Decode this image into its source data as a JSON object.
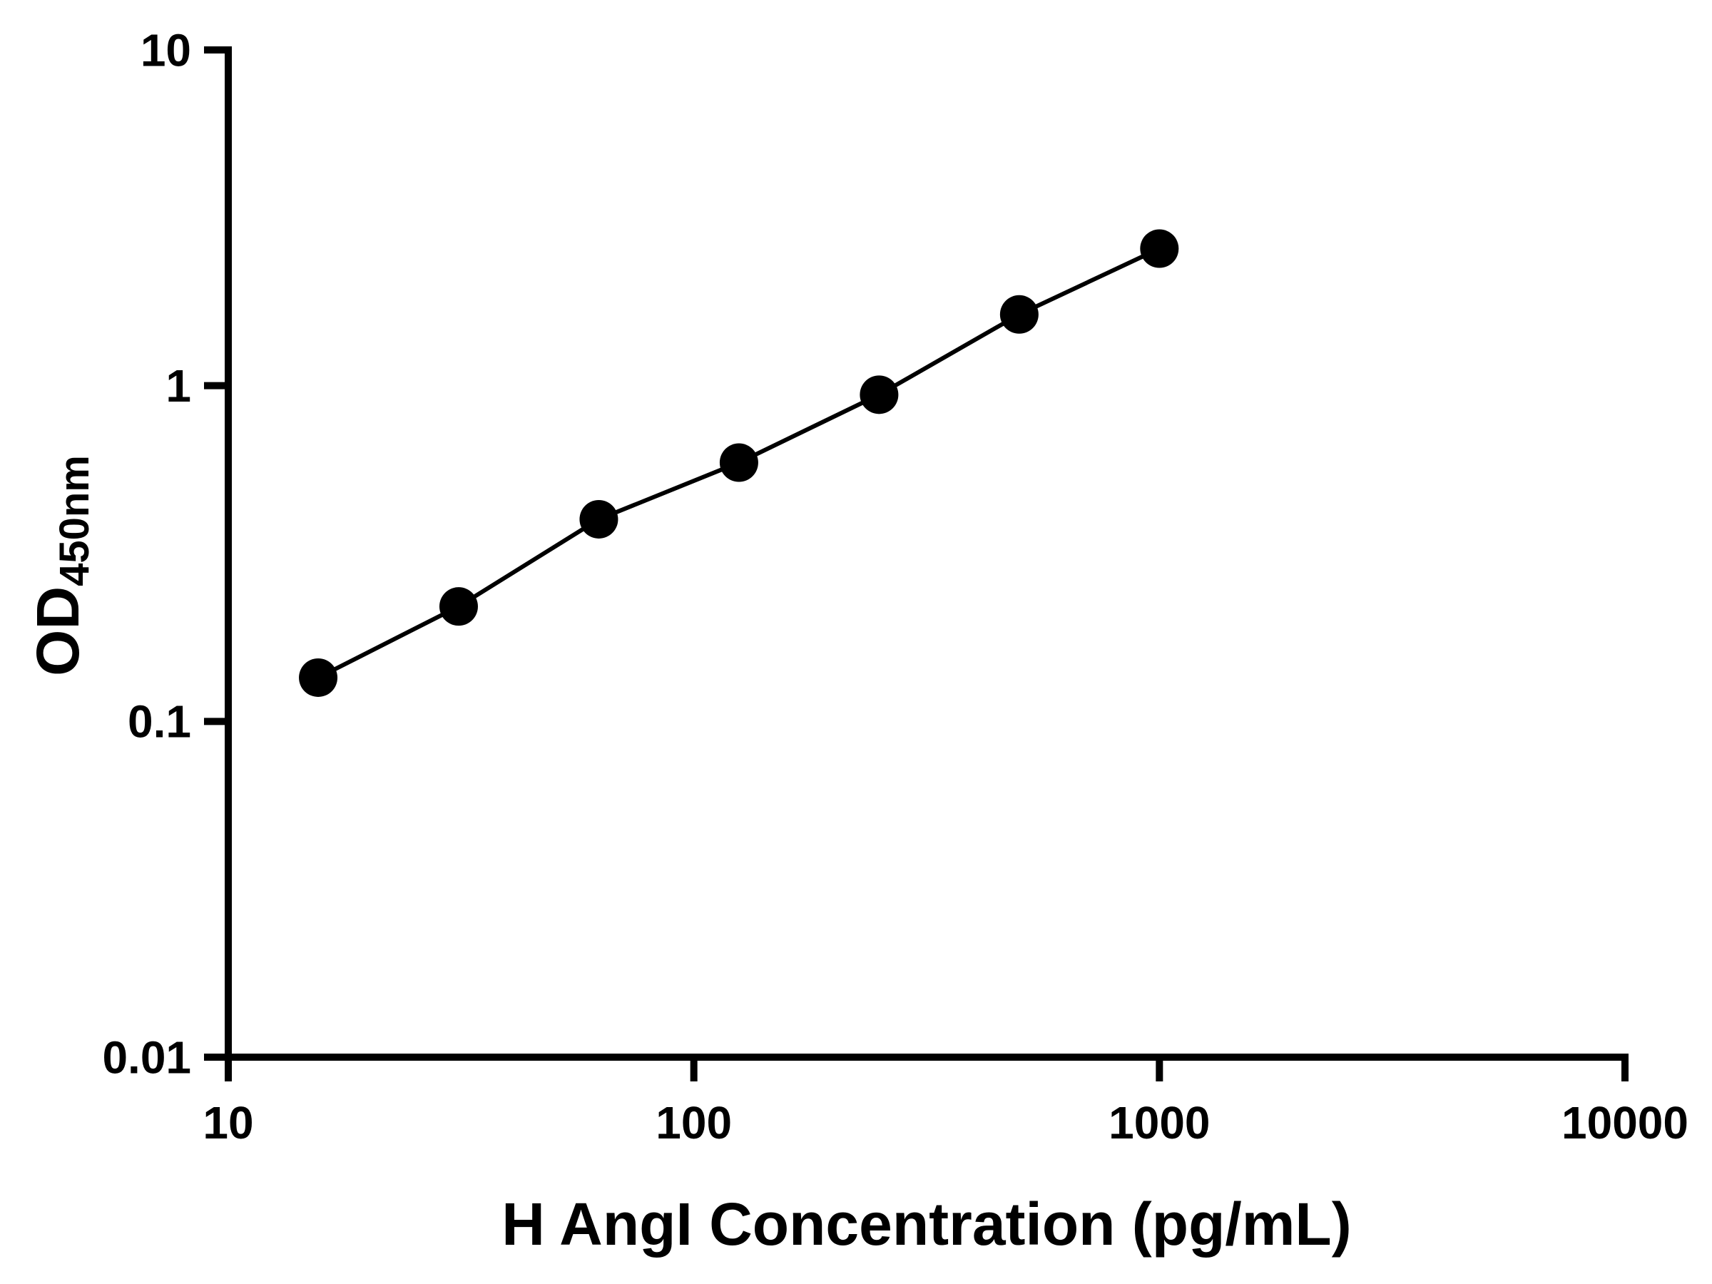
{
  "page": {
    "background": "#ffffff"
  },
  "chart_data": {
    "type": "scatter",
    "line_through_points": true,
    "grid": false,
    "legend": "none",
    "title": "",
    "xlabel": "H AngI Concentration (pg/mL)",
    "ylabel_main": "OD",
    "ylabel_sub": "450nm",
    "x_scale": "log",
    "y_scale": "log",
    "xlim": [
      10,
      10000
    ],
    "ylim": [
      0.01,
      10
    ],
    "x_tick_values": [
      10,
      100,
      1000,
      10000
    ],
    "x_tick_labels": [
      "10",
      "100",
      "1000",
      "10000"
    ],
    "y_tick_values": [
      10,
      1,
      0.1,
      0.01
    ],
    "y_tick_labels": [
      "10",
      "1",
      "0.1",
      "0.01"
    ],
    "points": [
      {
        "x": 15.6,
        "y": 0.135
      },
      {
        "x": 31.25,
        "y": 0.22
      },
      {
        "x": 62.5,
        "y": 0.4
      },
      {
        "x": 125,
        "y": 0.59
      },
      {
        "x": 250,
        "y": 0.94
      },
      {
        "x": 500,
        "y": 1.63
      },
      {
        "x": 1000,
        "y": 2.56
      }
    ],
    "colors": {
      "axis": "#000000",
      "tick_text": "#000000",
      "marker": "#000000",
      "line": "#000000",
      "background": "#ffffff"
    }
  }
}
